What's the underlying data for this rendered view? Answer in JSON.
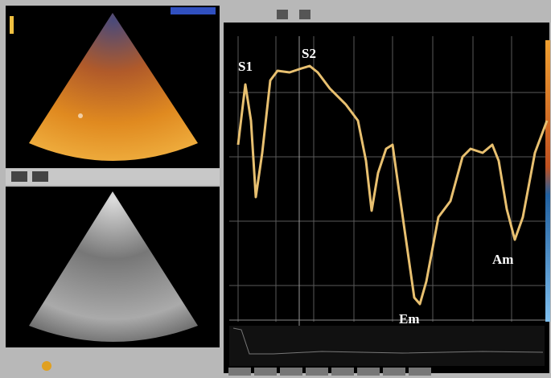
{
  "waveform_labels": {
    "s1": "S1",
    "s2": "S2",
    "em": "Em",
    "am": "Am"
  }
}
